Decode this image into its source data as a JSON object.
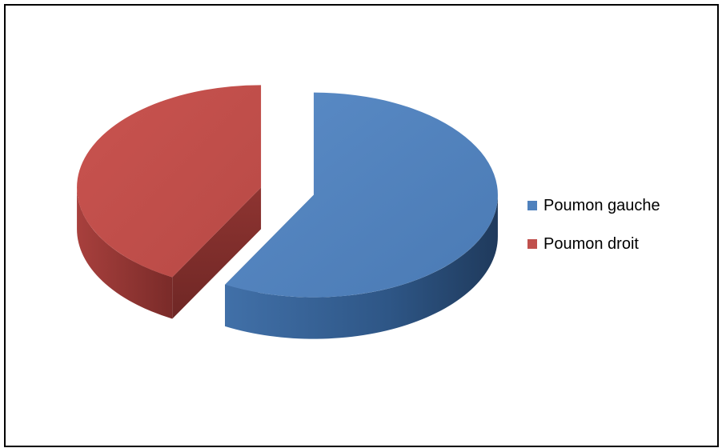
{
  "chart_data": {
    "type": "pie",
    "style": "3d-exploded",
    "title": "",
    "legend_position": "right",
    "series": [
      {
        "name": "",
        "slices": [
          {
            "label": "Poumon gauche",
            "value": 58,
            "color": "#4F81BD"
          },
          {
            "label": "Poumon droit",
            "value": 42,
            "color": "#C0504D"
          }
        ]
      }
    ]
  }
}
